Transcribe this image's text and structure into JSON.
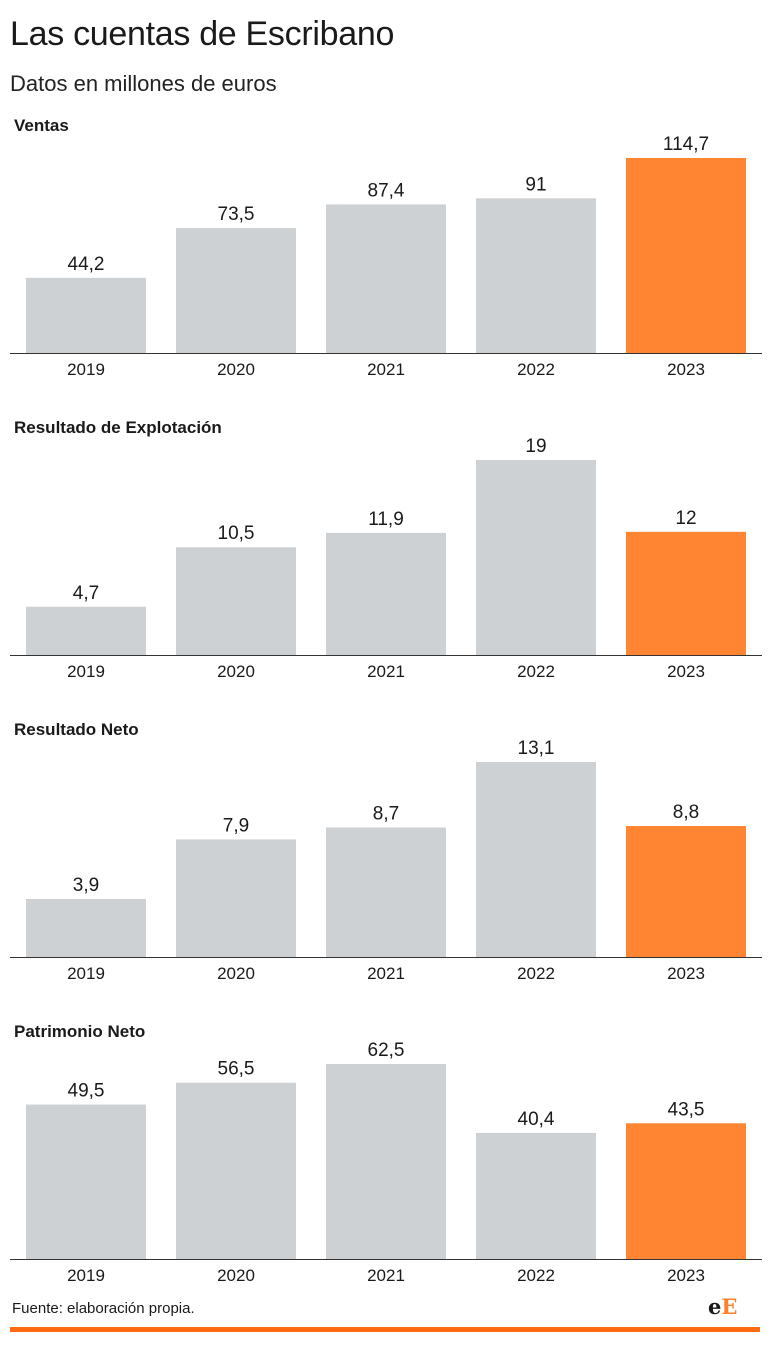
{
  "header": {
    "title": "Las cuentas de Escribano",
    "subtitle": "Datos en millones de euros"
  },
  "colors": {
    "bar_default": "#cdd1d4",
    "bar_highlight": "#ff8533",
    "axis": "#333333",
    "accent_bar": "#ff6a13"
  },
  "chart_data": [
    {
      "type": "bar",
      "title": "Ventas",
      "categories": [
        "2019",
        "2020",
        "2021",
        "2022",
        "2023"
      ],
      "values": [
        44.2,
        73.5,
        87.4,
        91,
        114.7
      ],
      "value_labels": [
        "44,2",
        "73,5",
        "87,4",
        "91",
        "114,7"
      ],
      "highlight": "2023"
    },
    {
      "type": "bar",
      "title": "Resultado de Explotación",
      "categories": [
        "2019",
        "2020",
        "2021",
        "2022",
        "2023"
      ],
      "values": [
        4.7,
        10.5,
        11.9,
        19,
        12
      ],
      "value_labels": [
        "4,7",
        "10,5",
        "11,9",
        "19",
        "12"
      ],
      "highlight": "2023"
    },
    {
      "type": "bar",
      "title": "Resultado Neto",
      "categories": [
        "2019",
        "2020",
        "2021",
        "2022",
        "2023"
      ],
      "values": [
        3.9,
        7.9,
        8.7,
        13.1,
        8.8
      ],
      "value_labels": [
        "3,9",
        "7,9",
        "8,7",
        "13,1",
        "8,8"
      ],
      "highlight": "2023"
    },
    {
      "type": "bar",
      "title": "Patrimonio Neto",
      "categories": [
        "2019",
        "2020",
        "2021",
        "2022",
        "2023"
      ],
      "values": [
        49.5,
        56.5,
        62.5,
        40.4,
        43.5
      ],
      "value_labels": [
        "49,5",
        "56,5",
        "62,5",
        "40,4",
        "43,5"
      ],
      "highlight": "2023"
    }
  ],
  "footer": {
    "source": "Fuente: elaboración propia.",
    "logo_e": "e",
    "logo_E": "E"
  }
}
